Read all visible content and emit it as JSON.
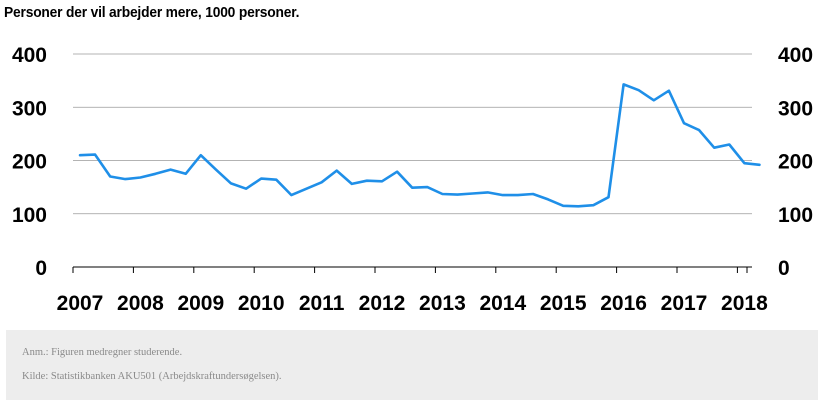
{
  "chart_data": {
    "type": "line",
    "title": "Personer der vil arbejder mere, 1000 personer.",
    "y_ticks": [
      "0",
      "100",
      "200",
      "300",
      "400"
    ],
    "ylim": [
      0,
      400
    ],
    "x_labels": [
      "2007",
      "2008",
      "2009",
      "2010",
      "2011",
      "2012",
      "2013",
      "2014",
      "2015",
      "2016",
      "2017",
      "2018"
    ],
    "grid": true,
    "series_color": "#1f8fe8",
    "series": [
      {
        "x": [
          2007.0,
          2007.25,
          2007.5,
          2007.75,
          2008.0,
          2008.25,
          2008.5,
          2008.75,
          2009.0,
          2009.25,
          2009.5,
          2009.75,
          2010.0,
          2010.25,
          2010.5,
          2010.75,
          2011.0,
          2011.25,
          2011.5,
          2011.75,
          2012.0,
          2012.25,
          2012.5,
          2012.75,
          2013.0,
          2013.25,
          2013.5,
          2013.75,
          2014.0,
          2014.25,
          2014.5,
          2014.75,
          2015.0,
          2015.25,
          2015.5,
          2015.75,
          2016.0,
          2016.25,
          2016.5,
          2016.75,
          2017.0,
          2017.25,
          2017.5,
          2017.75,
          2018.0,
          2018.25
        ],
        "values": [
          210,
          211,
          170,
          165,
          168,
          175,
          183,
          175,
          210,
          183,
          157,
          147,
          166,
          164,
          135,
          147,
          159,
          181,
          156,
          162,
          161,
          179,
          149,
          150,
          137,
          136,
          138,
          140,
          135,
          135,
          137,
          127,
          115,
          114,
          116,
          131,
          343,
          332,
          313,
          331,
          270,
          257,
          224,
          230,
          195,
          192
        ]
      }
    ]
  },
  "footer": {
    "note": "Anm.: Figuren medregner studerende.",
    "source": "Kilde: Statistikbanken AKU501 (Arbejdskraftundersøgelsen)."
  }
}
